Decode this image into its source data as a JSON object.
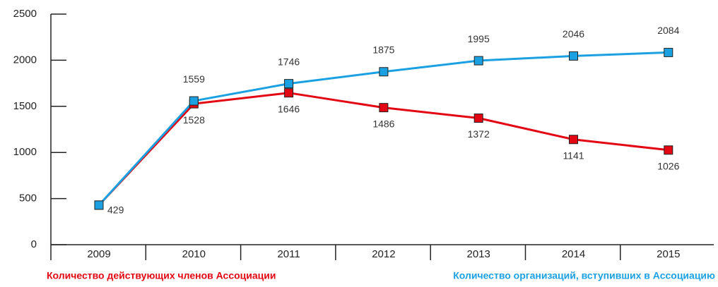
{
  "chart_data": {
    "type": "line",
    "categories": [
      "2009",
      "2010",
      "2011",
      "2012",
      "2013",
      "2014",
      "2015"
    ],
    "series": [
      {
        "name": "Количество действующих членов Ассоциации",
        "color": "#e30613",
        "values": [
          429,
          1528,
          1646,
          1486,
          1372,
          1141,
          1026
        ]
      },
      {
        "name": "Количество организаций, вступивших в Ассоциацию",
        "color": "#1ba1e2",
        "values": [
          429,
          1559,
          1746,
          1875,
          1995,
          2046,
          2084
        ]
      }
    ],
    "ylim": [
      0,
      2500
    ],
    "yticks": [
      0,
      500,
      1000,
      1500,
      2000,
      2500
    ],
    "grid": false
  }
}
